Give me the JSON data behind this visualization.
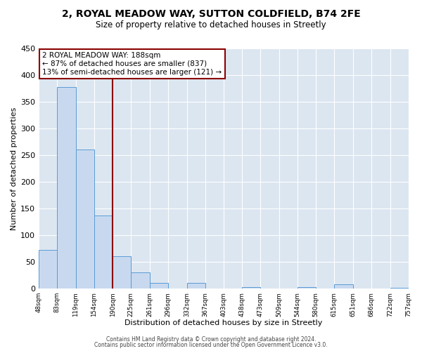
{
  "title": "2, ROYAL MEADOW WAY, SUTTON COLDFIELD, B74 2FE",
  "subtitle": "Size of property relative to detached houses in Streetly",
  "xlabel": "Distribution of detached houses by size in Streetly",
  "ylabel": "Number of detached properties",
  "bar_color": "#c8d9ef",
  "bar_edge_color": "#5b9bd5",
  "background_color": "#dce6f1",
  "grid_color": "#ffffff",
  "vline_x": 190,
  "vline_color": "#8b0000",
  "bin_edges": [
    48,
    83,
    119,
    154,
    190,
    225,
    261,
    296,
    332,
    367,
    403,
    438,
    473,
    509,
    544,
    580,
    615,
    651,
    686,
    722,
    757
  ],
  "bin_heights": [
    72,
    378,
    261,
    137,
    60,
    30,
    10,
    0,
    10,
    0,
    0,
    3,
    0,
    0,
    3,
    0,
    8,
    0,
    0,
    2
  ],
  "annotation_title": "2 ROYAL MEADOW WAY: 188sqm",
  "annotation_line1": "← 87% of detached houses are smaller (837)",
  "annotation_line2": "13% of semi-detached houses are larger (121) →",
  "annotation_box_color": "#ffffff",
  "annotation_box_edge_color": "#8b0000",
  "ylim": [
    0,
    450
  ],
  "yticks": [
    0,
    50,
    100,
    150,
    200,
    250,
    300,
    350,
    400,
    450
  ],
  "footer1": "Contains HM Land Registry data © Crown copyright and database right 2024.",
  "footer2": "Contains public sector information licensed under the Open Government Licence v3.0."
}
